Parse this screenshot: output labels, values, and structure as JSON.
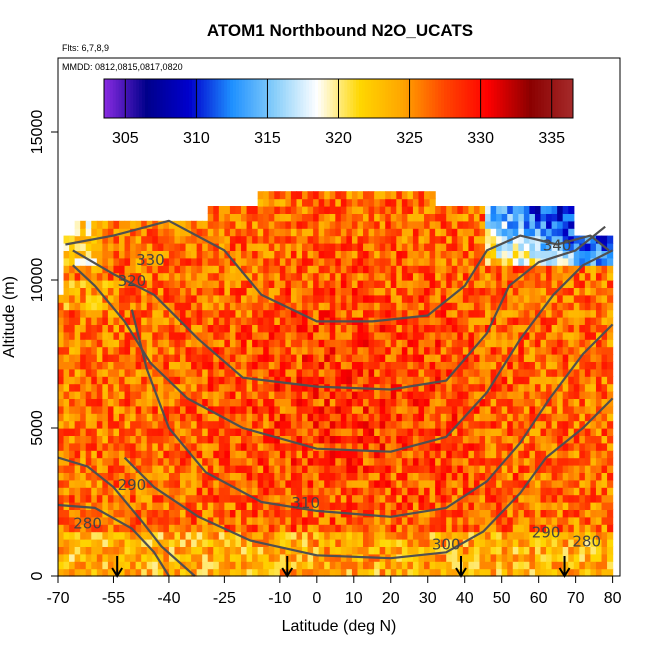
{
  "chart_data": {
    "type": "heatmap",
    "title": "ATOM1 Northbound N2O_UCATS",
    "subtitle_flights": "Flts: 6,7,8,9",
    "subtitle_dates": "MMDD: 0812,0815,0817,0820",
    "xlabel": "Latitude (deg N)",
    "ylabel": "Altitude (m)",
    "xlim": [
      -70,
      82
    ],
    "ylim": [
      0,
      17500
    ],
    "x_ticks": [
      "-70",
      "-55",
      "-40",
      "-25",
      "-10",
      "0",
      "10",
      "20",
      "30",
      "40",
      "50",
      "60",
      "70",
      "80"
    ],
    "x_tick_values": [
      -70,
      -55,
      -40,
      -25,
      -10,
      0,
      10,
      20,
      30,
      40,
      50,
      60,
      70,
      80
    ],
    "y_ticks": [
      "0",
      "5000",
      "10000",
      "15000"
    ],
    "y_tick_values": [
      0,
      5000,
      10000,
      15000
    ],
    "colorbar": {
      "ticks": [
        "305",
        "310",
        "315",
        "320",
        "325",
        "330",
        "335"
      ],
      "tick_values": [
        305,
        310,
        315,
        320,
        325,
        330,
        335
      ],
      "range": [
        303.5,
        336.5
      ],
      "colors": [
        "#8a2be2",
        "#00008b",
        "#0000cd",
        "#1e90ff",
        "#87cefa",
        "#ffffff",
        "#ffd700",
        "#ffa500",
        "#ff4500",
        "#ff0000",
        "#8b0000",
        "#a52a2a"
      ]
    },
    "contours": [
      {
        "label": "280",
        "points": [
          [
            -70,
            2400
          ],
          [
            -60,
            2300
          ],
          [
            -50,
            1600
          ],
          [
            -44,
            800
          ],
          [
            -40,
            0
          ]
        ]
      },
      {
        "label": "290",
        "points": [
          [
            -70,
            4000
          ],
          [
            -62,
            3700
          ],
          [
            -55,
            3000
          ],
          [
            -47,
            1800
          ],
          [
            -42,
            1000
          ],
          [
            -33,
            0
          ]
        ]
      },
      {
        "label": "300",
        "points": [
          [
            -52,
            4000
          ],
          [
            -44,
            3000
          ],
          [
            -32,
            2000
          ],
          [
            -18,
            1200
          ],
          [
            0,
            700
          ],
          [
            20,
            600
          ],
          [
            35,
            800
          ],
          [
            45,
            1500
          ],
          [
            55,
            2800
          ],
          [
            62,
            4000
          ],
          [
            72,
            5000
          ],
          [
            80,
            6000
          ]
        ]
      },
      {
        "label": "310",
        "points": [
          [
            -50,
            9000
          ],
          [
            -46,
            7000
          ],
          [
            -40,
            5000
          ],
          [
            -30,
            3500
          ],
          [
            -15,
            2500
          ],
          [
            0,
            2200
          ],
          [
            20,
            2000
          ],
          [
            35,
            2300
          ],
          [
            46,
            3200
          ],
          [
            55,
            4500
          ],
          [
            63,
            6000
          ],
          [
            72,
            7500
          ],
          [
            80,
            8500
          ]
        ]
      },
      {
        "label": "320",
        "points": [
          [
            -66,
            10500
          ],
          [
            -60,
            9800
          ],
          [
            -52,
            8600
          ],
          [
            -45,
            7200
          ],
          [
            -35,
            6000
          ],
          [
            -20,
            5000
          ],
          [
            0,
            4300
          ],
          [
            20,
            4200
          ],
          [
            35,
            4700
          ],
          [
            46,
            6200
          ],
          [
            55,
            8000
          ],
          [
            64,
            9500
          ],
          [
            72,
            10500
          ],
          [
            80,
            11000
          ]
        ]
      },
      {
        "label": "330",
        "points": [
          [
            -66,
            11000
          ],
          [
            -55,
            10200
          ],
          [
            -44,
            9500
          ],
          [
            -32,
            8000
          ],
          [
            -20,
            6700
          ],
          [
            0,
            6400
          ],
          [
            20,
            6300
          ],
          [
            35,
            6600
          ],
          [
            46,
            8200
          ],
          [
            52,
            9800
          ],
          [
            60,
            10600
          ],
          [
            70,
            11000
          ],
          [
            78,
            11800
          ]
        ]
      },
      {
        "label": "340",
        "points": [
          [
            -68,
            11200
          ],
          [
            -55,
            11500
          ],
          [
            -40,
            12000
          ],
          [
            -25,
            11000
          ],
          [
            -15,
            9500
          ],
          [
            0,
            8600
          ],
          [
            15,
            8600
          ],
          [
            30,
            8800
          ],
          [
            40,
            9800
          ],
          [
            46,
            11000
          ],
          [
            55,
            11500
          ],
          [
            65,
            11200
          ],
          [
            74,
            11500
          ],
          [
            79,
            11000
          ]
        ]
      }
    ],
    "flight_markers_lat": [
      -54,
      -8,
      39,
      67
    ],
    "contour_labels_shown": [
      {
        "text": "330",
        "lat": -45,
        "alt": 10500
      },
      {
        "text": "320",
        "lat": -50,
        "alt": 9800
      },
      {
        "text": "340",
        "lat": 65,
        "alt": 11000
      },
      {
        "text": "290",
        "lat": -50,
        "alt": 2900
      },
      {
        "text": "280",
        "lat": -62,
        "alt": 1600
      },
      {
        "text": "310",
        "lat": -3,
        "alt": 2300
      },
      {
        "text": "300",
        "lat": 35,
        "alt": 900
      },
      {
        "text": "290",
        "lat": 62,
        "alt": 1300
      },
      {
        "text": "280",
        "lat": 73,
        "alt": 1000
      }
    ]
  }
}
